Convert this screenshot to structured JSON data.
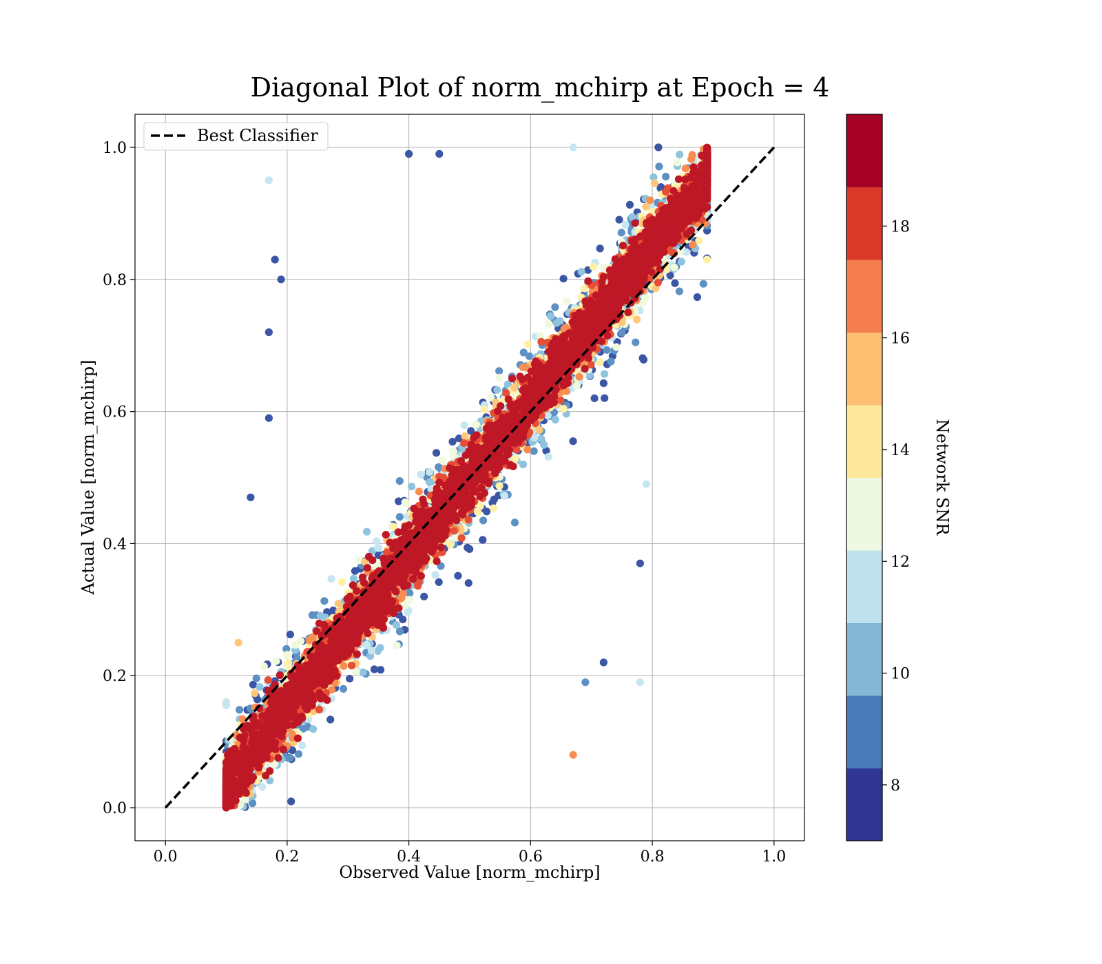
{
  "chart_data": {
    "type": "scatter",
    "title": "Diagonal Plot of norm_mchirp at Epoch = 4",
    "xlabel": "Observed Value [norm_mchirp]",
    "ylabel": "Actual Value [norm_mchirp]",
    "xlim": [
      -0.05,
      1.05
    ],
    "ylim": [
      -0.05,
      1.05
    ],
    "xticks": [
      0.0,
      0.2,
      0.4,
      0.6,
      0.8,
      1.0
    ],
    "yticks": [
      0.0,
      0.2,
      0.4,
      0.6,
      0.8,
      1.0
    ],
    "xtick_labels": [
      "0.0",
      "0.2",
      "0.4",
      "0.6",
      "0.8",
      "1.0"
    ],
    "ytick_labels": [
      "0.0",
      "0.2",
      "0.4",
      "0.6",
      "0.8",
      "1.0"
    ],
    "grid": true,
    "legend": {
      "placement": "upper-left",
      "entries": [
        {
          "label": "Best Classifier",
          "style": "dashed",
          "color": "#000000"
        }
      ]
    },
    "reference_line": {
      "name": "Best Classifier",
      "x": [
        0.0,
        1.0
      ],
      "y": [
        0.0,
        1.0
      ]
    },
    "colorbar": {
      "label": "Network SNR",
      "range": [
        7,
        20
      ],
      "ticks": [
        8,
        10,
        12,
        14,
        16,
        18
      ],
      "tick_labels": [
        "8",
        "10",
        "12",
        "14",
        "16",
        "18"
      ],
      "colors": [
        "#313695",
        "#4575b4",
        "#74add1",
        "#abd9e9",
        "#e0f3f8",
        "#ffffbf",
        "#fee090",
        "#fdae61",
        "#f46d43",
        "#d73027",
        "#a50026"
      ],
      "bands": [
        "#313695",
        "#4a7ab7",
        "#84b6d6",
        "#bfe2ee",
        "#eff8e2",
        "#fee89c",
        "#fdbf71",
        "#f57e4f",
        "#da392a",
        "#a50026"
      ]
    },
    "series": [
      {
        "x_range": [
          0.1,
          0.89
        ],
        "y_range": [
          0.0,
          1.0
        ],
        "snr_range": [
          7,
          20
        ],
        "relation": "points scatter around y = x; residual spread shrinks as Network SNR increases",
        "sample_points": [
          {
            "x": 0.17,
            "y": 0.95,
            "snr": 11
          },
          {
            "x": 0.18,
            "y": 0.83,
            "snr": 7
          },
          {
            "x": 0.19,
            "y": 0.8,
            "snr": 8
          },
          {
            "x": 0.17,
            "y": 0.72,
            "snr": 8
          },
          {
            "x": 0.17,
            "y": 0.59,
            "snr": 8
          },
          {
            "x": 0.14,
            "y": 0.47,
            "snr": 7
          },
          {
            "x": 0.67,
            "y": 0.08,
            "snr": 17
          },
          {
            "x": 0.78,
            "y": 0.19,
            "snr": 11
          },
          {
            "x": 0.69,
            "y": 0.19,
            "snr": 9
          },
          {
            "x": 0.72,
            "y": 0.22,
            "snr": 8
          },
          {
            "x": 0.89,
            "y": 0.83,
            "snr": 14
          },
          {
            "x": 0.89,
            "y": 0.98,
            "snr": 19
          },
          {
            "x": 0.79,
            "y": 0.49,
            "snr": 11
          },
          {
            "x": 0.78,
            "y": 0.37,
            "snr": 8
          },
          {
            "x": 0.12,
            "y": 0.25,
            "snr": 15
          },
          {
            "x": 0.1,
            "y": 0.16,
            "snr": 12
          },
          {
            "x": 0.45,
            "y": 0.99,
            "snr": 8
          },
          {
            "x": 0.4,
            "y": 0.99,
            "snr": 8
          },
          {
            "x": 0.81,
            "y": 1.0,
            "snr": 8
          },
          {
            "x": 0.67,
            "y": 1.0,
            "snr": 11
          }
        ]
      }
    ]
  }
}
